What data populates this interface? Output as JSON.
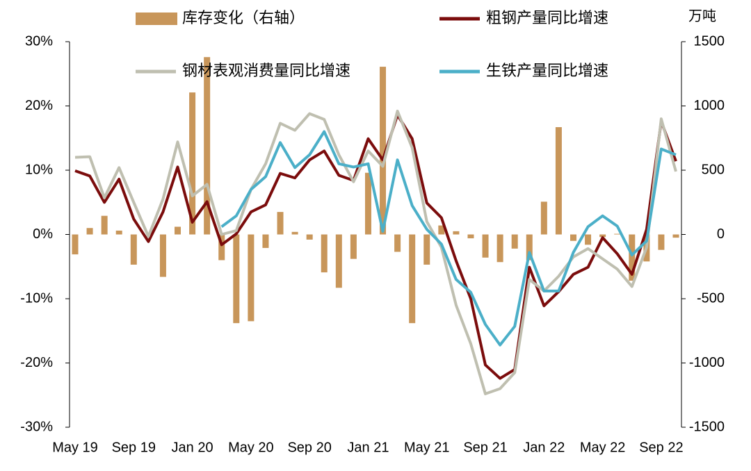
{
  "chart_data": {
    "type": "combo",
    "y2_label": "万吨",
    "categories": [
      "May 19",
      null,
      null,
      null,
      "Sep 19",
      null,
      null,
      null,
      "Jan 20",
      null,
      null,
      null,
      "May 20",
      null,
      null,
      null,
      "Sep 20",
      null,
      null,
      null,
      "Jan 21",
      null,
      null,
      null,
      "May 21",
      null,
      null,
      null,
      "Sep 21",
      null,
      null,
      null,
      "Jan 22",
      null,
      null,
      null,
      "May 22",
      null,
      null,
      null,
      "Sep 22",
      null
    ],
    "series": [
      {
        "name": "库存变化（右轴）",
        "type": "bar",
        "axis": "y2",
        "color": "#c8965a",
        "values": [
          -155,
          50,
          145,
          30,
          -235,
          0,
          -330,
          60,
          1105,
          1380,
          -200,
          -690,
          -675,
          -105,
          175,
          20,
          -40,
          -295,
          -415,
          -190,
          480,
          1305,
          -135,
          -690,
          -235,
          70,
          25,
          -30,
          -180,
          -215,
          -110,
          -200,
          255,
          835,
          -50,
          -80,
          -20,
          5,
          -360,
          -210,
          -120,
          -25
        ]
      },
      {
        "name": "粗钢产量同比增速",
        "type": "line",
        "color": "#7b0c0c",
        "values": [
          9.9,
          9.1,
          5.0,
          8.6,
          2.4,
          -1.1,
          3.5,
          10.5,
          1.9,
          5.1,
          -1.6,
          0.1,
          3.5,
          4.6,
          9.5,
          8.8,
          11.6,
          13.0,
          9.2,
          8.4,
          14.9,
          11.6,
          18.6,
          14.9,
          4.9,
          2.6,
          -4.1,
          -10.0,
          -20.3,
          -22.4,
          -21.0,
          -5.1,
          -11.1,
          -8.9,
          -6.2,
          -5.1,
          -0.5,
          -3.0,
          -6.2,
          0.8,
          17.6,
          11.4
        ]
      },
      {
        "name": "钢材表观消费量同比增速",
        "type": "line",
        "color": "#bfbfb0",
        "values": [
          12.0,
          12.1,
          5.7,
          10.4,
          5.0,
          -0.3,
          5.5,
          14.4,
          6.0,
          7.8,
          0.0,
          0.6,
          7.0,
          11.0,
          17.3,
          16.2,
          18.8,
          17.9,
          12.4,
          8.2,
          13.0,
          10.6,
          19.2,
          13.5,
          2.0,
          -2.0,
          -11.0,
          -17.0,
          -24.8,
          -24.0,
          -21.5,
          -7.0,
          -8.8,
          -6.5,
          -3.5,
          -2.2,
          -3.8,
          -5.4,
          -8.1,
          -2.0,
          18.0,
          9.8
        ]
      },
      {
        "name": "生铁产量同比增速",
        "type": "line",
        "color": "#4bafc8",
        "values": [
          null,
          null,
          null,
          null,
          null,
          null,
          null,
          null,
          null,
          null,
          1.2,
          2.9,
          7.0,
          9.0,
          14.3,
          10.4,
          12.4,
          16.0,
          11.0,
          10.5,
          11.0,
          0.5,
          11.6,
          4.5,
          0.8,
          -1.5,
          -7.0,
          -9.0,
          -14.0,
          -17.2,
          -14.3,
          -2.8,
          -8.8,
          -8.8,
          -2.8,
          1.2,
          2.9,
          1.3,
          -3.2,
          -1.0,
          13.3,
          12.4
        ]
      }
    ],
    "ylim": [
      -30,
      30
    ],
    "yticks": [
      {
        "value": -30,
        "label": "-30%"
      },
      {
        "value": -20,
        "label": "-20%"
      },
      {
        "value": -10,
        "label": "-10%"
      },
      {
        "value": 0,
        "label": "0%"
      },
      {
        "value": 10,
        "label": "10%"
      },
      {
        "value": 20,
        "label": "20%"
      },
      {
        "value": 30,
        "label": "30%"
      }
    ],
    "y2lim": [
      -1500,
      1500
    ],
    "y2ticks": [
      -1500,
      -1000,
      -500,
      0,
      500,
      1000,
      1500
    ]
  }
}
